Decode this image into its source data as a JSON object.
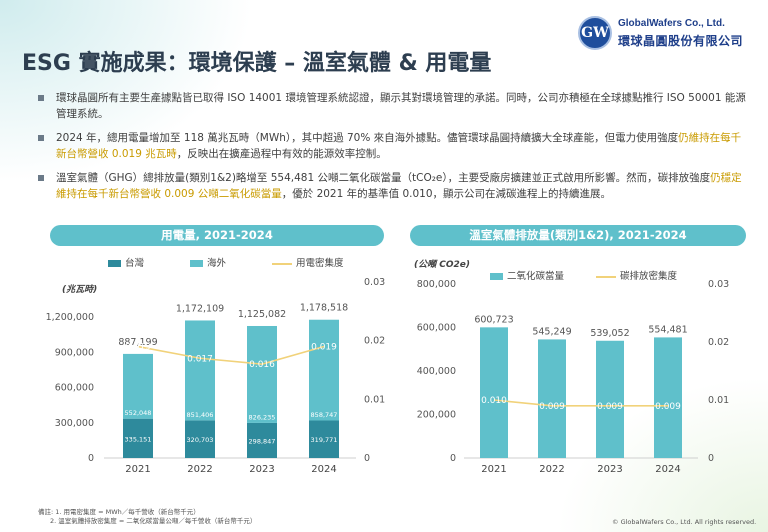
{
  "logo": {
    "mark": "GW",
    "name_en": "GlobalWafers Co., Ltd.",
    "name_zh": "環球晶圓股份有限公司"
  },
  "title": "ESG 實施成果：環境保護 – 溫室氣體 & 用電量",
  "bullets": [
    {
      "parts": [
        {
          "t": "環球晶圓所有主要生產據點皆已取得 ISO 14001 環境管理系統認證，顯示其對環境管理的承諾。同時，公司亦積極在全球據點推行 ISO 50001 能源管理系統。",
          "hl": false
        }
      ]
    },
    {
      "parts": [
        {
          "t": "2024 年，總用電量增加至 118 萬兆瓦時（MWh），其中超過 70% 來自海外據點。儘管環球晶圓持續擴大全球產能，但電力使用強度",
          "hl": false
        },
        {
          "t": "仍維持在每千新台幣營收 0.019 兆瓦時",
          "hl": true
        },
        {
          "t": "，反映出在擴產過程中有效的能源效率控制。",
          "hl": false
        }
      ]
    },
    {
      "parts": [
        {
          "t": "溫室氣體（GHG）總排放量(類別1&2)略增至 554,481 公噸二氧化碳當量（tCO₂e），主要受廠房擴建並正式啟用所影響。然而，碳排放強度",
          "hl": false
        },
        {
          "t": "仍穩定維持在每千新台幣營收 0.009 公噸二氧化碳當量",
          "hl": true
        },
        {
          "t": "，優於 2021 年的基準值 0.010，顯示公司在減碳進程上的持續進展。",
          "hl": false
        }
      ]
    }
  ],
  "colors": {
    "taiwan": "#2e8a9c",
    "overseas": "#5fc0cb",
    "intensity_line": "#f1d27a",
    "header": "#5fc0cb"
  },
  "chart_data": [
    {
      "type": "bar",
      "title": "用電量, 2021-2024",
      "unit_label": "(兆瓦時)",
      "categories": [
        "2021",
        "2022",
        "2023",
        "2024"
      ],
      "series": [
        {
          "name": "台灣",
          "values": [
            335151,
            320703,
            298847,
            319771
          ]
        },
        {
          "name": "海外",
          "values": [
            552048,
            851406,
            826235,
            858747
          ]
        }
      ],
      "totals": [
        887199,
        1172109,
        1125082,
        1178518
      ],
      "totals_labels": [
        "887,199",
        "1,172,109",
        "1,125,082",
        "1,178,518"
      ],
      "tw_labels": [
        "335,151",
        "320,703",
        "298,847",
        "319,771"
      ],
      "os_labels": [
        "552,048",
        "851,406",
        "826,235",
        "858,747"
      ],
      "line": {
        "name": "用電密集度",
        "values": [
          0.019,
          0.017,
          0.016,
          0.019
        ],
        "labels": [
          "0.019",
          "0.017",
          "0.016",
          "0.019"
        ]
      },
      "y_ticks": [
        0,
        300000,
        600000,
        900000,
        1200000
      ],
      "y_tick_labels": [
        "0",
        "300,000",
        "600,000",
        "900,000",
        "1,200,000"
      ],
      "ylim": [
        0,
        1500000
      ],
      "y2_ticks": [
        0,
        0.01,
        0.02,
        0.03
      ],
      "y2_tick_labels": [
        "0",
        "0.01",
        "0.02",
        "0.03"
      ],
      "y2lim": [
        0,
        0.03
      ]
    },
    {
      "type": "bar",
      "title": "溫室氣體排放量(類別1&2), 2021-2024",
      "unit_label": "(公噸 CO2e)",
      "categories": [
        "2021",
        "2022",
        "2023",
        "2024"
      ],
      "series": [
        {
          "name": "二氧化碳當量",
          "values": [
            600723,
            545249,
            539052,
            554481
          ]
        }
      ],
      "value_labels": [
        "600,723",
        "545,249",
        "539,052",
        "554,481"
      ],
      "line": {
        "name": "碳排放密集度",
        "values": [
          0.01,
          0.009,
          0.009,
          0.009
        ],
        "labels": [
          "0.010",
          "0.009",
          "0.009",
          "0.009"
        ]
      },
      "y_ticks": [
        0,
        200000,
        400000,
        600000,
        800000
      ],
      "y_tick_labels": [
        "0",
        "200,000",
        "400,000",
        "600,000",
        "800,000"
      ],
      "ylim": [
        0,
        800000
      ],
      "y2_ticks": [
        0,
        0.01,
        0.02,
        0.03
      ],
      "y2_tick_labels": [
        "0",
        "0.01",
        "0.02",
        "0.03"
      ],
      "y2lim": [
        0,
        0.03
      ]
    }
  ],
  "footnotes": [
    "備註: 1. 用電密集度 = MWh／每千營收（新台幣千元）",
    "2. 溫室氣體排放密集度 = 二氧化碳當量公噸／每千營收（新台幣千元）"
  ],
  "copyright": "© GlobalWafers Co., Ltd. All rights reserved."
}
